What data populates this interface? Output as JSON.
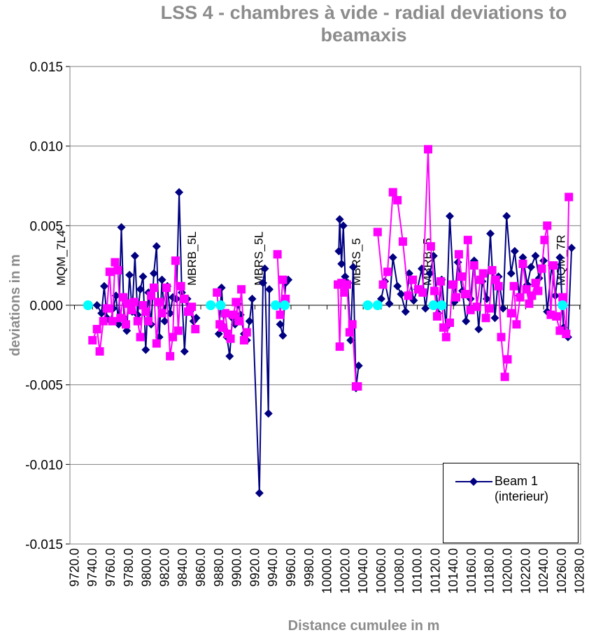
{
  "chart_data": {
    "type": "line",
    "title": "LSS 4 - chambres à vide - radial deviations to beamaxis",
    "xlabel": "Distance cumulee in m",
    "ylabel": "deviations in m",
    "xlim": [
      9715,
      10281
    ],
    "ylim": [
      -0.015,
      0.015
    ],
    "yticks": [
      {
        "value": -0.015,
        "label": "-0.015"
      },
      {
        "value": -0.01,
        "label": "-0.010"
      },
      {
        "value": -0.005,
        "label": "-0.005"
      },
      {
        "value": 0,
        "label": "0.000"
      },
      {
        "value": 0.005,
        "label": "0.005"
      },
      {
        "value": 0.01,
        "label": "0.010"
      },
      {
        "value": 0.015,
        "label": "0.015"
      }
    ],
    "xticks": [
      {
        "value": 9720,
        "label": "9720.0"
      },
      {
        "value": 9740,
        "label": "9740.0"
      },
      {
        "value": 9760,
        "label": "9760.0"
      },
      {
        "value": 9780,
        "label": "9780.0"
      },
      {
        "value": 9800,
        "label": "9800.0"
      },
      {
        "value": 9820,
        "label": "9820.0"
      },
      {
        "value": 9840,
        "label": "9840.0"
      },
      {
        "value": 9860,
        "label": "9860.0"
      },
      {
        "value": 9880,
        "label": "9880.0"
      },
      {
        "value": 9900,
        "label": "9900.0"
      },
      {
        "value": 9920,
        "label": "9920.0"
      },
      {
        "value": 9940,
        "label": "9940.0"
      },
      {
        "value": 9960,
        "label": "9960.0"
      },
      {
        "value": 9980,
        "label": "9980.0"
      },
      {
        "value": 10000,
        "label": "10000.0"
      },
      {
        "value": 10020,
        "label": "10020.0"
      },
      {
        "value": 10040,
        "label": "10040.0"
      },
      {
        "value": 10060,
        "label": "10060.0"
      },
      {
        "value": 10080,
        "label": "10080.0"
      },
      {
        "value": 10100,
        "label": "10100.0"
      },
      {
        "value": 10120,
        "label": "10120.0"
      },
      {
        "value": 10140,
        "label": "10140.0"
      },
      {
        "value": 10160,
        "label": "10160.0"
      },
      {
        "value": 10180,
        "label": "10180.0"
      },
      {
        "value": 10200,
        "label": "10200.0"
      },
      {
        "value": 10220,
        "label": "10220.0"
      },
      {
        "value": 10240,
        "label": "10240.0"
      },
      {
        "value": 10260,
        "label": "10260.0"
      },
      {
        "value": 10280,
        "label": "10280.0"
      }
    ],
    "grid": true,
    "legend": "lower right",
    "annotations": [
      {
        "text": "MQM_7L4",
        "x": 9705
      },
      {
        "text": "MBRB_5L",
        "x": 9850
      },
      {
        "text": "MBRS_5L",
        "x": 9924
      },
      {
        "text": "MBRS_5",
        "x": 10032
      },
      {
        "text": "MBRB_5",
        "x": 10111
      },
      {
        "text": "MQM_7R",
        "x": 10259
      }
    ],
    "series": [
      {
        "name": "Beam 1 (interieur)",
        "color": "#000080",
        "marker": "diamond",
        "x": [
          9745,
          9750,
          9753,
          9756,
          9760,
          9763,
          9766,
          9769,
          9772,
          9775,
          9778,
          9781,
          9784,
          9787,
          9790,
          9793,
          9796,
          9799,
          9802,
          9805,
          9808,
          9811,
          9814,
          9817,
          9820,
          9823,
          9826,
          9829,
          9833,
          9836,
          9839,
          9842,
          9845,
          9848,
          9852,
          9855,
          null,
          9880,
          9883,
          9886,
          9889,
          9892,
          9895,
          9898,
          9901,
          9904,
          9908,
          9911,
          9914,
          9917,
          9925,
          9929,
          9931,
          9935,
          9936,
          null,
          9948,
          9951,
          9954,
          9957,
          null,
          10013,
          10014,
          10016,
          10018,
          10020,
          10023,
          10026,
          10029,
          10032,
          10035,
          null,
          10060,
          10064,
          10069,
          10073,
          10078,
          10082,
          10087,
          10091,
          10096,
          10100,
          10105,
          10109,
          10114,
          10118,
          10123,
          10127,
          10132,
          10136,
          10141,
          10145,
          10150,
          10154,
          10159,
          10163,
          10168,
          10172,
          10177,
          10181,
          10186,
          10190,
          10195,
          10199,
          10204,
          10208,
          10213,
          10217,
          10222,
          10226,
          10231,
          10235,
          10240,
          10244,
          10249,
          10253,
          10258,
          10262,
          10267,
          10271
        ],
        "values": [
          0,
          -0.0005,
          0.0012,
          -0.0008,
          -0.001,
          -0.0002,
          0.0006,
          -0.0012,
          0.0049,
          -0.0008,
          -0.0016,
          0.0019,
          -0.0004,
          0.0031,
          -0.0006,
          0.001,
          0.0018,
          -0.0028,
          0.0008,
          -0.0012,
          0.002,
          0.0037,
          -0.002,
          0.0016,
          -0.001,
          0.0012,
          -0.0005,
          0.0005,
          0.0004,
          0.0071,
          0.0008,
          -0.0029,
          0.0004,
          -0.0004,
          -0.001,
          -0.0008,
          null,
          -0.0018,
          0.0011,
          -0.0015,
          -0.002,
          -0.0032,
          -0.0008,
          -0.0012,
          0.0001,
          -0.0006,
          -0.0018,
          -0.0022,
          -0.001,
          0.0004,
          -0.0118,
          0.0014,
          0.0023,
          -0.0068,
          0.001,
          null,
          -0.0012,
          -0.0019,
          0.0014,
          0.0016,
          null,
          0.0034,
          0.0054,
          0.0026,
          0.005,
          0.0018,
          0.0014,
          -0.0022,
          0.0024,
          -0.0052,
          -0.0038,
          null,
          0.0004,
          0.0015,
          0.0001,
          0.003,
          0.0012,
          0.0007,
          -0.0004,
          0.002,
          0.0003,
          0.001,
          0.0023,
          -0.0002,
          0.002,
          0.0031,
          -0.0005,
          0.0016,
          -0.0014,
          0.0056,
          0.0002,
          0.0027,
          0.0009,
          -0.001,
          0.0004,
          0.0028,
          -0.0015,
          0.0015,
          0.0004,
          0.0045,
          -0.0008,
          0.0018,
          -0.0002,
          0.0056,
          0.002,
          0.0034,
          0.0006,
          0.003,
          0.0013,
          0.0024,
          0.0031,
          0.0017,
          0.0028,
          -0.0004,
          0.0025,
          0.0006,
          0.003,
          -0.0014,
          -0.002,
          0.0036
        ]
      },
      {
        "color": "#ff00ff",
        "marker": "square",
        "x": [
          9740,
          9745,
          9748,
          9752,
          9756,
          9759,
          9762,
          9765,
          9768,
          9771,
          9774,
          9777,
          9780,
          9783,
          9786,
          9790,
          9793,
          9796,
          9799,
          9802,
          9805,
          9808,
          9811,
          9814,
          9817,
          9822,
          9826,
          9829,
          9832,
          9835,
          9838,
          9842,
          9846,
          9850,
          9854,
          null,
          9878,
          9881,
          9884,
          9887,
          9890,
          9893,
          9896,
          9899,
          9902,
          9905,
          9908,
          9911,
          null,
          9945,
          9948,
          9951,
          9954,
          null,
          10012,
          10014,
          10016,
          10019,
          10022,
          10025,
          10028,
          10032,
          10034,
          null,
          10056,
          10062,
          10067,
          10073,
          10078,
          10084,
          10090,
          10095,
          10101,
          10106,
          10112,
          10115,
          10119,
          10122,
          10126,
          10129,
          10132,
          10136,
          10139,
          10143,
          10146,
          10149,
          10153,
          10156,
          10159,
          10163,
          10166,
          10170,
          10173,
          10176,
          10180,
          10183,
          10187,
          10190,
          10193,
          10197,
          10200,
          10204,
          10207,
          10210,
          10214,
          10217,
          10221,
          10224,
          10227,
          10231,
          10234,
          10238,
          10241,
          10244,
          10248,
          10251,
          10254,
          10258,
          10261,
          10265,
          10268
        ],
        "values": [
          -0.0022,
          -0.0015,
          -0.0029,
          -0.001,
          -0.0002,
          0.0021,
          -0.001,
          0.0027,
          0.0022,
          -0.0008,
          0.0005,
          -0.0012,
          0.0001,
          -0.0003,
          0.0002,
          -0.001,
          -0.002,
          0,
          -0.0004,
          -0.001,
          0.0006,
          0.0011,
          -0.0024,
          0.0002,
          -0.0005,
          0.0011,
          -0.0032,
          -0.002,
          0.0028,
          -0.0016,
          0.0012,
          0.0004,
          -0.0004,
          -0.0001,
          -0.0015,
          null,
          0.0008,
          -0.0012,
          -0.0014,
          -0.0005,
          -0.0018,
          -0.0021,
          -0.0006,
          0.0002,
          -0.001,
          0.001,
          -0.0022,
          -0.0017,
          null,
          0.0032,
          -0.0006,
          0.0016,
          0.0004,
          null,
          0.0013,
          -0.0026,
          0.0014,
          0.0008,
          0.0013,
          -0.0017,
          -0.0012,
          -0.0051,
          -0.0051,
          null,
          0.0046,
          0.0013,
          0.0021,
          0.0071,
          0.0066,
          0.004,
          0.0006,
          0.0016,
          0.001,
          0.0008,
          0.0098,
          0.0037,
          0.0009,
          -0.0007,
          0.0015,
          -0.0014,
          -0.002,
          -0.0011,
          0.0013,
          0.0005,
          0.0032,
          0.0018,
          0.0007,
          0.0041,
          -0.0003,
          0.0025,
          -0.0001,
          0.0016,
          0.002,
          -0.0008,
          -0.0002,
          0.0022,
          0.0016,
          0.0012,
          -0.002,
          -0.0045,
          -0.0034,
          -0.0005,
          0.0012,
          -0.0012,
          0.0005,
          0.0026,
          0.001,
          0.0001,
          0.0006,
          0.0014,
          0.0009,
          0.0023,
          0.0041,
          0.005,
          -0.0006,
          0.0025,
          -0.0007,
          -0.0016,
          0.0005,
          -0.0018,
          0.0068
        ]
      },
      {
        "color": "#00ffff",
        "marker": "circle",
        "line": false,
        "x": [
          9735,
          9871,
          9882,
          9943,
          9953,
          10045,
          10056,
          10118,
          10127,
          10261
        ],
        "values": [
          0,
          0,
          0,
          0,
          0,
          0,
          0,
          0,
          0,
          0
        ]
      }
    ]
  }
}
